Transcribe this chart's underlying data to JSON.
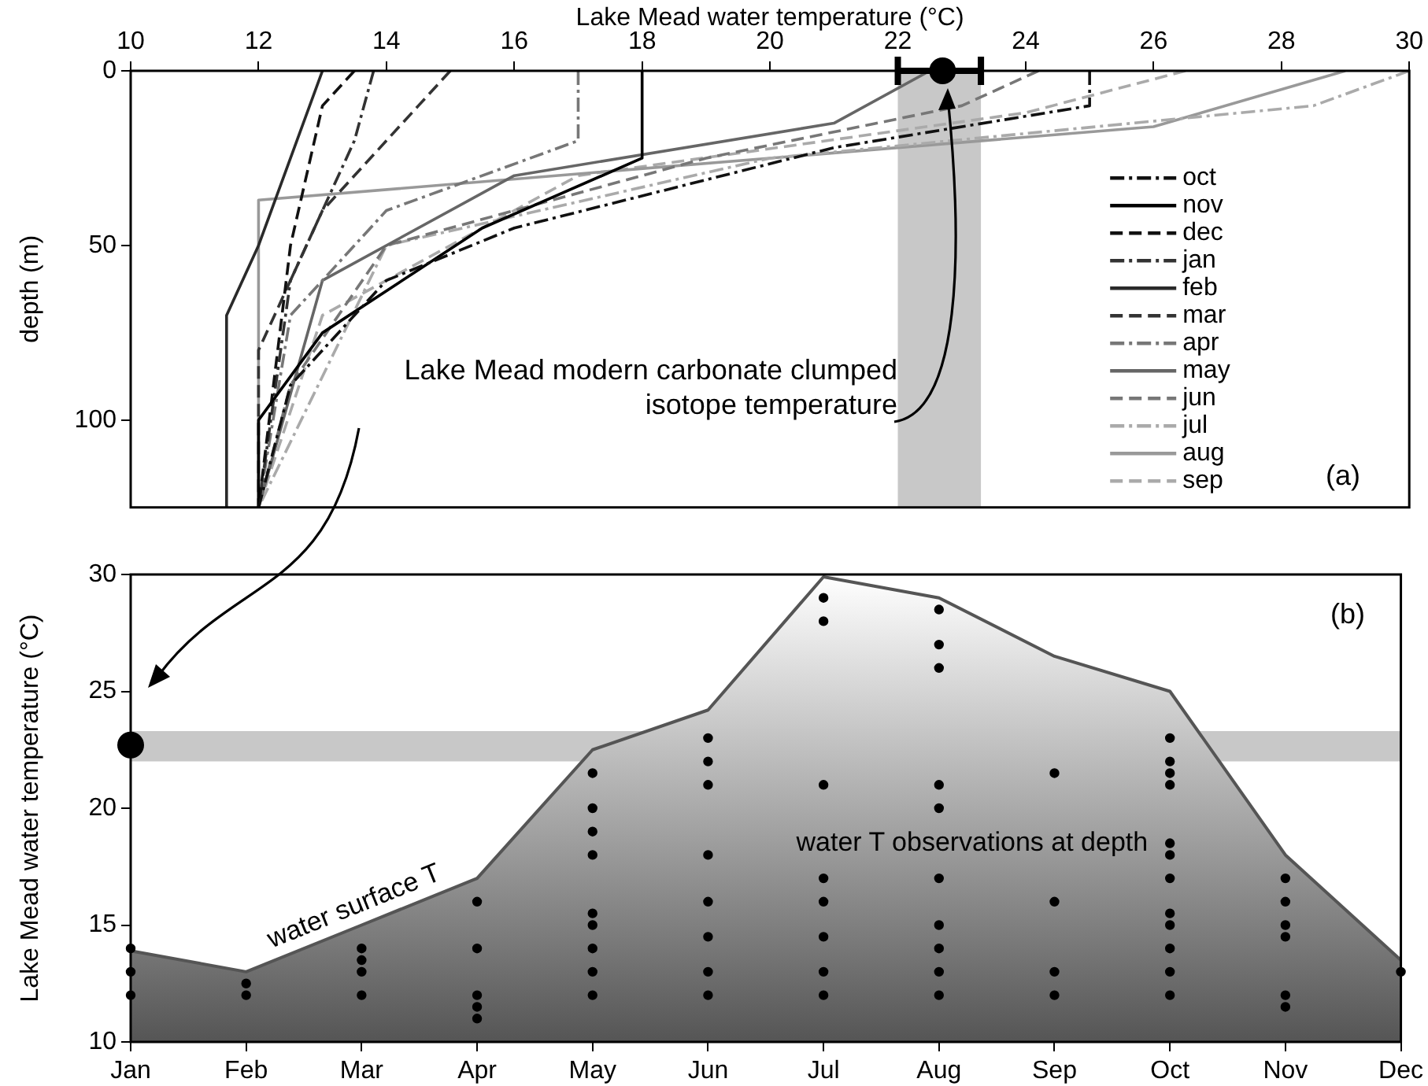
{
  "chart_data": [
    {
      "type": "line",
      "xlabel": "Lake Mead water temperature (°C)",
      "ylabel": "depth (m)",
      "xlim": [
        10,
        30
      ],
      "xticks": [
        10,
        12,
        14,
        16,
        18,
        20,
        22,
        24,
        26,
        28,
        30
      ],
      "ylim": [
        125,
        0
      ],
      "yticks": [
        0,
        50,
        100
      ],
      "legend": "bottom right",
      "series": [
        {
          "name": "oct",
          "color": "#111111",
          "line_style": "dashdot",
          "x": [
            25,
            25,
            21,
            16,
            14,
            12.5,
            12
          ],
          "values": [
            0,
            10,
            22,
            45,
            60,
            90,
            125
          ]
        },
        {
          "name": "nov",
          "color": "#000000",
          "line_style": "solid",
          "x": [
            18,
            18,
            15.5,
            13,
            12,
            12
          ],
          "values": [
            0,
            25,
            45,
            75,
            100,
            125
          ]
        },
        {
          "name": "dec",
          "color": "#111111",
          "line_style": "dashed",
          "x": [
            13.5,
            13,
            12.5,
            12
          ],
          "values": [
            0,
            10,
            50,
            125
          ]
        },
        {
          "name": "jan",
          "color": "#333333",
          "line_style": "dashdot",
          "x": [
            13.8,
            13.5,
            12.5,
            12
          ],
          "values": [
            0,
            20,
            60,
            125
          ]
        },
        {
          "name": "feb",
          "color": "#2a2a2a",
          "line_style": "solid",
          "x": [
            13,
            12,
            11.5,
            11.5
          ],
          "values": [
            0,
            50,
            70,
            125
          ]
        },
        {
          "name": "mar",
          "color": "#333333",
          "line_style": "dashed",
          "x": [
            15,
            14.5,
            13,
            12,
            12
          ],
          "values": [
            0,
            10,
            40,
            80,
            125
          ]
        },
        {
          "name": "apr",
          "color": "#777777",
          "line_style": "dashdot",
          "x": [
            17,
            17,
            14,
            12.5,
            12
          ],
          "values": [
            0,
            20,
            40,
            70,
            125
          ]
        },
        {
          "name": "may",
          "color": "#666666",
          "line_style": "solid",
          "x": [
            22.5,
            21,
            16,
            13,
            12
          ],
          "values": [
            0,
            15,
            30,
            60,
            125
          ]
        },
        {
          "name": "jun",
          "color": "#777777",
          "line_style": "dashed",
          "x": [
            24.2,
            23,
            19,
            14,
            12.5,
            12
          ],
          "values": [
            0,
            10,
            25,
            50,
            90,
            125
          ]
        },
        {
          "name": "jul",
          "color": "#aaaaaa",
          "line_style": "dashdot",
          "x": [
            30,
            28.5,
            20,
            14,
            12
          ],
          "values": [
            0,
            10,
            25,
            50,
            125
          ]
        },
        {
          "name": "aug",
          "color": "#999999",
          "line_style": "solid",
          "x": [
            29,
            26,
            22,
            12,
            12
          ],
          "values": [
            0,
            16,
            22,
            37,
            125
          ]
        },
        {
          "name": "sep",
          "color": "#aaaaaa",
          "line_style": "dashed",
          "x": [
            26.5,
            24,
            17,
            13,
            12
          ],
          "values": [
            0,
            12,
            30,
            70,
            125
          ]
        },
        {
          "type": "scatter",
          "color": "#000000",
          "x": [
            22.7
          ],
          "values": [
            0
          ],
          "xerrors": [
            [
              22,
              23.3
            ]
          ]
        }
      ],
      "bands": [
        {
          "axis": "x",
          "from": 22,
          "to": 23.3,
          "color": "#c8c8c8"
        }
      ],
      "annotations": [
        "Lake Mead modern carbonate clumped isotope temperature",
        "(a)"
      ]
    },
    {
      "type": "area",
      "categories": [
        "Jan",
        "Feb",
        "Mar",
        "Apr",
        "May",
        "Jun",
        "Jul",
        "Aug",
        "Sep",
        "Oct",
        "Nov",
        "Dec"
      ],
      "ylabel": "Lake Mead water temperature (°C)",
      "ylim": [
        10,
        30
      ],
      "yticks": [
        10,
        15,
        20,
        25,
        30
      ],
      "series": [
        {
          "name": "water surface T",
          "color": "#555555",
          "values": [
            13.9,
            13,
            15,
            17,
            22.5,
            24.2,
            29.9,
            29,
            26.5,
            25,
            18,
            13.5
          ]
        },
        {
          "name": "water T observations at depth",
          "type": "scatter",
          "marker": "circle",
          "color": "#000000",
          "x": [
            "Jan",
            "Jan",
            "Jan",
            "Feb",
            "Feb",
            "Mar",
            "Mar",
            "Mar",
            "Mar",
            "Apr",
            "Apr",
            "Apr",
            "Apr",
            "Apr",
            "May",
            "May",
            "May",
            "May",
            "May",
            "May",
            "May",
            "May",
            "May",
            "Jun",
            "Jun",
            "Jun",
            "Jun",
            "Jun",
            "Jun",
            "Jun",
            "Jun",
            "Jul",
            "Jul",
            "Jul",
            "Jul",
            "Jul",
            "Jul",
            "Jul",
            "Jul",
            "Aug",
            "Aug",
            "Aug",
            "Aug",
            "Aug",
            "Aug",
            "Aug",
            "Aug",
            "Aug",
            "Aug",
            "Sep",
            "Sep",
            "Sep",
            "Sep",
            "Oct",
            "Oct",
            "Oct",
            "Oct",
            "Oct",
            "Oct",
            "Oct",
            "Oct",
            "Oct",
            "Oct",
            "Oct",
            "Oct",
            "Nov",
            "Nov",
            "Nov",
            "Nov",
            "Nov",
            "Nov",
            "Dec"
          ],
          "values": [
            14,
            13,
            12,
            12.5,
            12,
            14,
            13.5,
            13,
            12,
            16,
            14,
            12,
            11.5,
            11,
            21.5,
            20,
            19,
            18,
            15.5,
            15,
            14,
            13,
            12,
            23,
            22,
            21,
            18,
            16,
            14.5,
            13,
            12,
            29,
            28,
            21,
            17,
            16,
            14.5,
            13,
            12,
            28.5,
            27,
            26,
            21,
            20,
            17,
            15,
            14,
            13,
            12,
            21.5,
            16,
            13,
            12,
            23,
            22,
            21.5,
            21,
            18.5,
            18,
            17,
            15.5,
            15,
            14,
            13,
            12,
            17,
            16,
            15,
            14.5,
            12,
            11.5,
            13
          ]
        },
        {
          "type": "scatter",
          "marker": "circle",
          "color": "#000000",
          "x": [
            "Jan"
          ],
          "values": [
            22.7
          ]
        }
      ],
      "bands": [
        {
          "axis": "y",
          "from": 22,
          "to": 23.3,
          "color": "#c8c8c8"
        }
      ],
      "annotations": [
        "(b)"
      ]
    }
  ]
}
